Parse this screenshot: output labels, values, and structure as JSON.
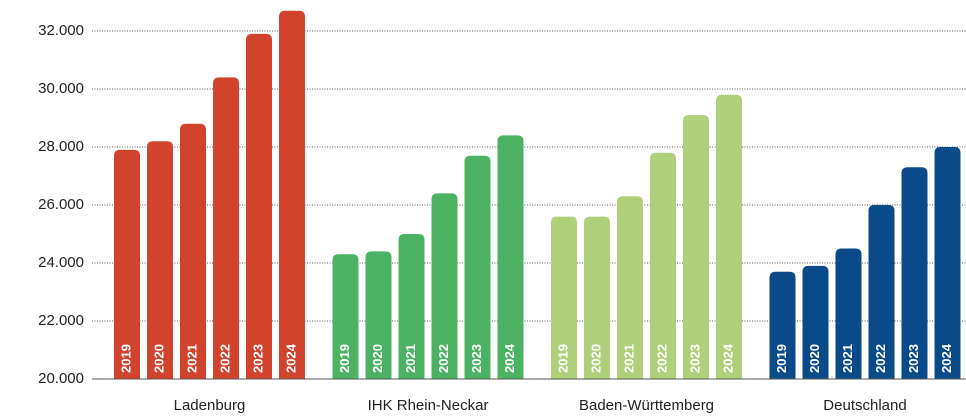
{
  "chart_data": {
    "type": "bar",
    "years": [
      "2019",
      "2020",
      "2021",
      "2022",
      "2023",
      "2024"
    ],
    "series": [
      {
        "name": "Ladenburg",
        "color": "#d2432e",
        "values": [
          27900,
          28200,
          28800,
          30400,
          31900,
          32700
        ]
      },
      {
        "name": "IHK Rhein-Neckar",
        "color": "#4cb263",
        "values": [
          24300,
          24400,
          25000,
          26400,
          27700,
          28400
        ]
      },
      {
        "name": "Baden-Württemberg",
        "color": "#b0cf7b",
        "values": [
          25600,
          25600,
          26300,
          27800,
          29100,
          29800
        ]
      },
      {
        "name": "Deutschland",
        "color": "#0b4a88",
        "values": [
          23700,
          23900,
          24500,
          26000,
          27300,
          28000
        ]
      }
    ],
    "ylim": [
      20000,
      33000
    ],
    "yticks": [
      {
        "value": 20000,
        "label": "20.000"
      },
      {
        "value": 22000,
        "label": "22.000"
      },
      {
        "value": 24000,
        "label": "24.000"
      },
      {
        "value": 26000,
        "label": "26.000"
      },
      {
        "value": 28000,
        "label": "28.000"
      },
      {
        "value": 30000,
        "label": "30.000"
      },
      {
        "value": 32000,
        "label": "32.000"
      }
    ],
    "grid": true
  }
}
